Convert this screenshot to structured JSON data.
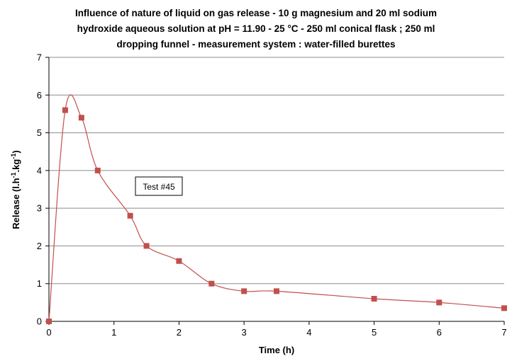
{
  "chart_data": {
    "type": "line",
    "title_lines": [
      "Influence of nature of liquid on gas release - 10 g magnesium and 20 ml sodium",
      "hydroxide aqueous solution at pH = 11.90 - 25 °C - 250 ml conical flask ; 250 ml",
      "dropping funnel - measurement system : water-filled burettes"
    ],
    "xlabel": "Time (h)",
    "ylabel_main": "Release (l.h",
    "ylabel_sup1": "-1",
    "ylabel_mid": ".kg",
    "ylabel_sup2": "-1",
    "ylabel_end": ")",
    "xlim": [
      0,
      7
    ],
    "ylim": [
      0,
      7
    ],
    "x_ticks": [
      0,
      1,
      2,
      3,
      4,
      5,
      6,
      7
    ],
    "y_ticks": [
      0,
      1,
      2,
      3,
      4,
      5,
      6,
      7
    ],
    "grid": true,
    "annotation": "Test #45",
    "series": [
      {
        "color": "#C0504D",
        "x": [
          0,
          0.25,
          0.5,
          0.75,
          1.25,
          1.5,
          2,
          2.5,
          3,
          3.5,
          5,
          6,
          7
        ],
        "y": [
          0,
          5.6,
          5.4,
          4.0,
          2.8,
          2.0,
          1.6,
          1.0,
          0.8,
          0.8,
          0.6,
          0.5,
          0.35
        ]
      }
    ]
  }
}
